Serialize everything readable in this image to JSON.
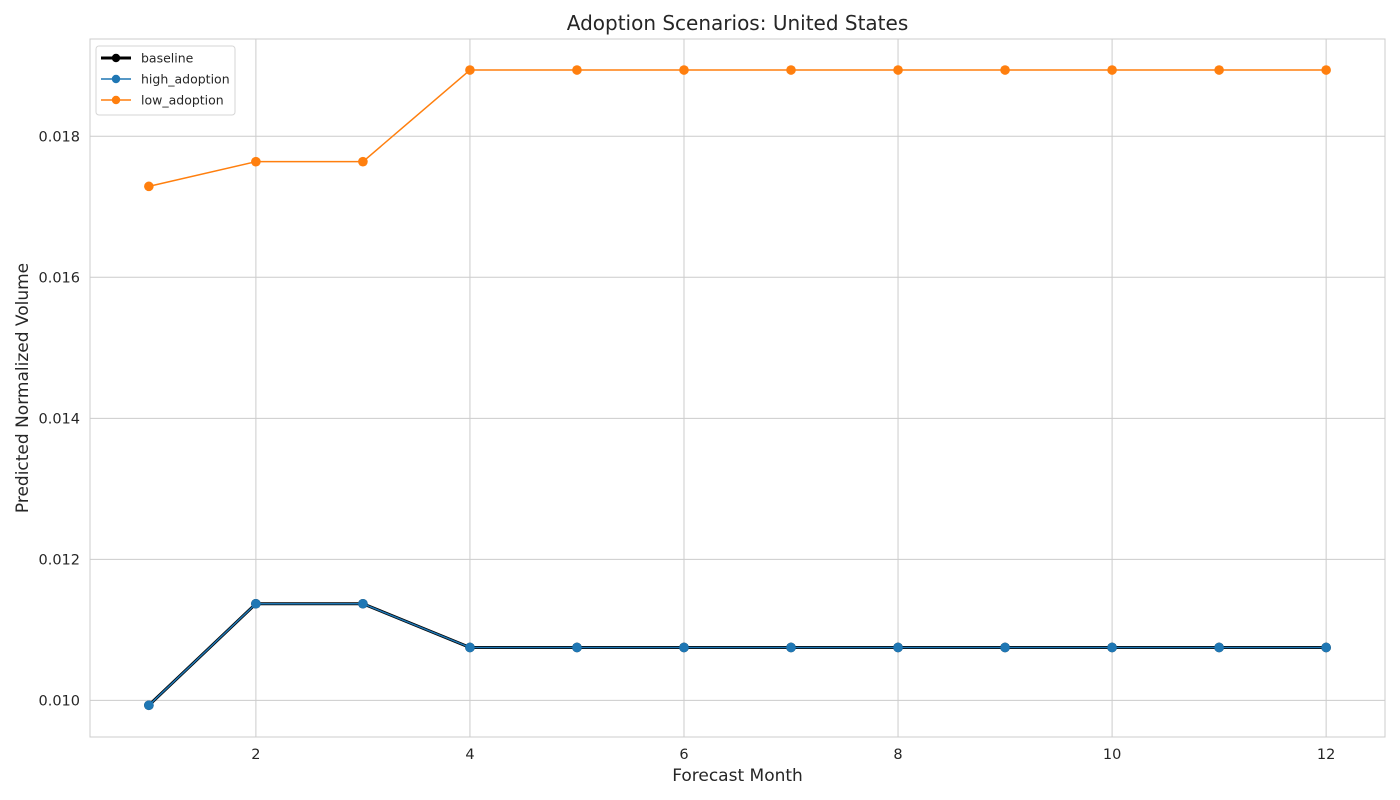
{
  "chart_data": {
    "type": "line",
    "title": "Adoption Scenarios: United States",
    "xlabel": "Forecast Month",
    "ylabel": "Predicted Normalized Volume",
    "xlim": [
      0.45,
      12.55
    ],
    "ylim": [
      0.00948,
      0.01938
    ],
    "xticks": [
      2,
      4,
      6,
      8,
      10,
      12
    ],
    "yticks": [
      0.01,
      0.012,
      0.014,
      0.016,
      0.018
    ],
    "ytick_labels": [
      "0.010",
      "0.012",
      "0.014",
      "0.016",
      "0.018"
    ],
    "grid": true,
    "legend": "top-left",
    "x": [
      1,
      2,
      3,
      4,
      5,
      6,
      7,
      8,
      9,
      10,
      11,
      12
    ],
    "series": [
      {
        "name": "baseline",
        "color": "#000000",
        "values": [
          0.00993,
          0.01137,
          0.01137,
          0.01075,
          0.01075,
          0.01075,
          0.01075,
          0.01075,
          0.01075,
          0.01075,
          0.01075,
          0.01075
        ]
      },
      {
        "name": "high_adoption",
        "color": "#1f77b4",
        "values": [
          0.00993,
          0.01137,
          0.01137,
          0.01075,
          0.01075,
          0.01075,
          0.01075,
          0.01075,
          0.01075,
          0.01075,
          0.01075,
          0.01075
        ]
      },
      {
        "name": "low_adoption",
        "color": "#ff7f0e",
        "values": [
          0.01729,
          0.01764,
          0.01764,
          0.01894,
          0.01894,
          0.01894,
          0.01894,
          0.01894,
          0.01894,
          0.01894,
          0.01894,
          0.01894
        ]
      }
    ]
  }
}
